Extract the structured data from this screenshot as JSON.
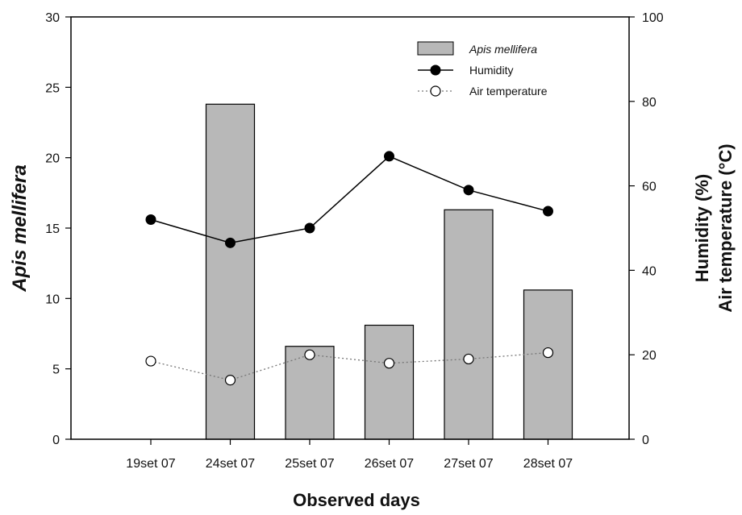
{
  "chart_data": {
    "type": "bar",
    "categories": [
      "19set 07",
      "24set 07",
      "25set 07",
      "26set 07",
      "27set 07",
      "28set 07"
    ],
    "xlabel": "Observed days",
    "ylabel_left": "Apis mellifera",
    "ylabel_right_line1": "Humidity (%)",
    "ylabel_right_line2": "Air temperature (°C)",
    "ylim_left": [
      0,
      30
    ],
    "yticks_left": [
      0,
      5,
      10,
      15,
      20,
      25,
      30
    ],
    "ylim_right": [
      0,
      100
    ],
    "yticks_right": [
      0,
      20,
      40,
      60,
      80,
      100
    ],
    "grid": false,
    "legend_position": "top-right",
    "series": [
      {
        "name": "Apis mellifera",
        "type": "bar",
        "axis": "left",
        "values": [
          0,
          23.8,
          6.6,
          8.1,
          16.3,
          10.6
        ],
        "color": "#b8b8b8"
      },
      {
        "name": "Humidity",
        "type": "line",
        "axis": "right",
        "values": [
          52,
          46.5,
          50,
          67,
          59,
          54
        ],
        "color": "#000000"
      },
      {
        "name": "Air temperature",
        "type": "line",
        "axis": "right",
        "values": [
          18.5,
          14,
          20,
          18,
          19,
          20.5
        ],
        "color": "#ffffff"
      }
    ]
  }
}
